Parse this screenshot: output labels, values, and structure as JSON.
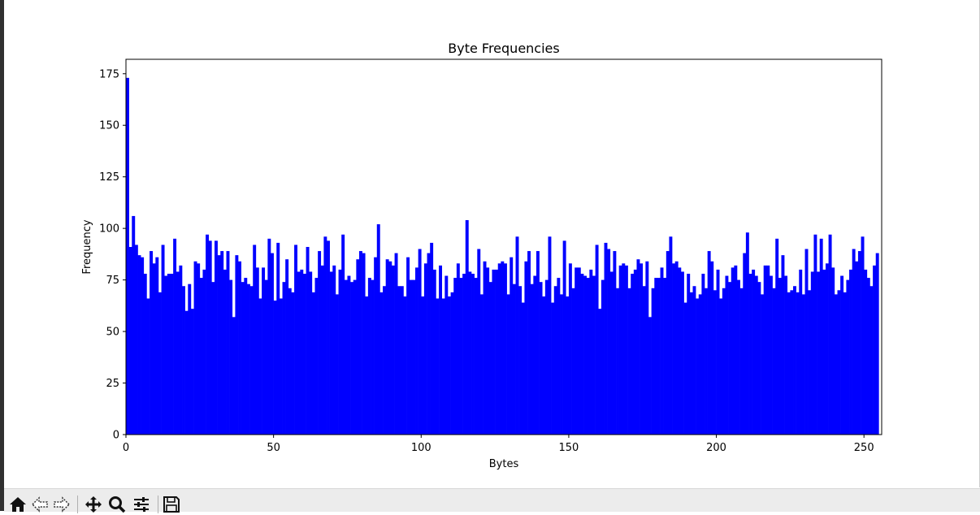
{
  "chart_data": {
    "type": "bar",
    "title": "Byte Frequencies",
    "xlabel": "Bytes",
    "ylabel": "Frequency",
    "xlim": [
      0,
      256
    ],
    "ylim": [
      0,
      182
    ],
    "xticks": [
      0,
      50,
      100,
      150,
      200,
      250
    ],
    "yticks": [
      0,
      25,
      50,
      75,
      100,
      125,
      150,
      175
    ],
    "bar_color": "#0000ff",
    "categories_start": 0,
    "values": [
      173,
      91,
      106,
      92,
      87,
      86,
      78,
      66,
      89,
      83,
      86,
      69,
      92,
      77,
      78,
      78,
      95,
      79,
      82,
      72,
      60,
      73,
      61,
      84,
      83,
      76,
      80,
      97,
      94,
      74,
      94,
      87,
      89,
      80,
      89,
      75,
      57,
      87,
      84,
      74,
      76,
      73,
      72,
      92,
      81,
      66,
      81,
      75,
      95,
      88,
      65,
      93,
      66,
      74,
      85,
      71,
      69,
      92,
      79,
      80,
      78,
      91,
      79,
      69,
      76,
      89,
      82,
      96,
      94,
      79,
      82,
      68,
      80,
      97,
      75,
      77,
      74,
      75,
      85,
      89,
      88,
      67,
      76,
      75,
      86,
      102,
      69,
      72,
      85,
      84,
      82,
      88,
      72,
      72,
      67,
      86,
      75,
      75,
      81,
      90,
      67,
      83,
      88,
      93,
      80,
      66,
      82,
      66,
      77,
      67,
      69,
      76,
      83,
      76,
      78,
      104,
      79,
      78,
      76,
      90,
      68,
      84,
      81,
      74,
      80,
      80,
      83,
      84,
      83,
      68,
      86,
      73,
      96,
      72,
      64,
      84,
      89,
      73,
      77,
      89,
      74,
      67,
      75,
      96,
      64,
      72,
      76,
      68,
      94,
      67,
      83,
      71,
      81,
      81,
      78,
      77,
      76,
      80,
      77,
      92,
      61,
      75,
      93,
      90,
      79,
      89,
      71,
      82,
      83,
      82,
      71,
      78,
      80,
      85,
      83,
      72,
      84,
      57,
      71,
      76,
      76,
      81,
      76,
      89,
      96,
      83,
      84,
      81,
      79,
      64,
      78,
      69,
      72,
      66,
      68,
      78,
      71,
      89,
      84,
      70,
      80,
      66,
      71,
      77,
      74,
      81,
      82,
      75,
      71,
      88,
      98,
      78,
      80,
      77,
      74,
      68,
      82,
      82,
      77,
      71,
      95,
      76,
      87,
      77,
      69,
      70,
      72,
      69,
      80,
      68,
      90,
      70,
      79,
      97,
      79,
      95,
      80,
      83,
      97,
      81,
      68,
      70,
      77,
      69,
      75,
      80,
      90,
      84,
      89,
      96,
      80,
      76,
      72,
      82,
      88
    ]
  },
  "toolbar": {
    "buttons": [
      {
        "name": "home-button",
        "icon": "home-icon"
      },
      {
        "name": "back-button",
        "icon": "arrow-left-icon"
      },
      {
        "name": "forward-button",
        "icon": "arrow-right-icon"
      },
      {
        "name": "pan-button",
        "icon": "move-icon"
      },
      {
        "name": "zoom-button",
        "icon": "magnifier-icon"
      },
      {
        "name": "configure-subplots-button",
        "icon": "sliders-icon"
      },
      {
        "name": "save-button",
        "icon": "floppy-icon"
      }
    ]
  }
}
